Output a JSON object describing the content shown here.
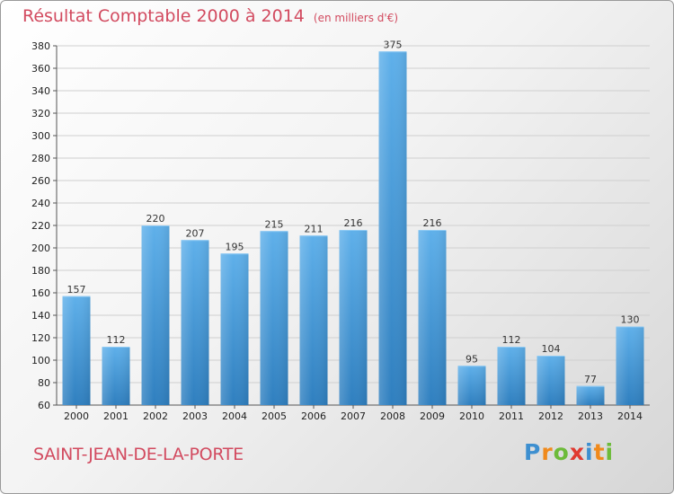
{
  "chart_data": {
    "type": "bar",
    "title": "Résultat Comptable 2000 à 2014",
    "subtitle": "(en milliers d'€)",
    "categories": [
      "2000",
      "2001",
      "2002",
      "2003",
      "2004",
      "2005",
      "2006",
      "2007",
      "2008",
      "2009",
      "2010",
      "2011",
      "2012",
      "2013",
      "2014"
    ],
    "values": [
      157,
      112,
      220,
      207,
      195,
      215,
      211,
      216,
      375,
      216,
      95,
      112,
      104,
      77,
      130
    ],
    "ylim": [
      60,
      380
    ],
    "yticks": [
      60,
      80,
      100,
      120,
      140,
      160,
      180,
      200,
      220,
      240,
      260,
      280,
      300,
      320,
      340,
      360,
      380
    ],
    "grid": true,
    "xlabel": "",
    "ylabel": ""
  },
  "commune": "SAINT-JEAN-DE-LA-PORTE",
  "logo": {
    "letters": [
      "P",
      "r",
      "o",
      "x",
      "i",
      "t",
      "i"
    ],
    "colors": [
      "#3d8fd0",
      "#f08a1c",
      "#6dbb3a",
      "#e0392f",
      "#3d8fd0",
      "#f08a1c",
      "#6dbb3a"
    ]
  },
  "colors": {
    "title": "#d24a5f",
    "bar_top": "#5fb0ea",
    "bar_bottom": "#2f7fbf",
    "grid": "#cfcfcf"
  }
}
